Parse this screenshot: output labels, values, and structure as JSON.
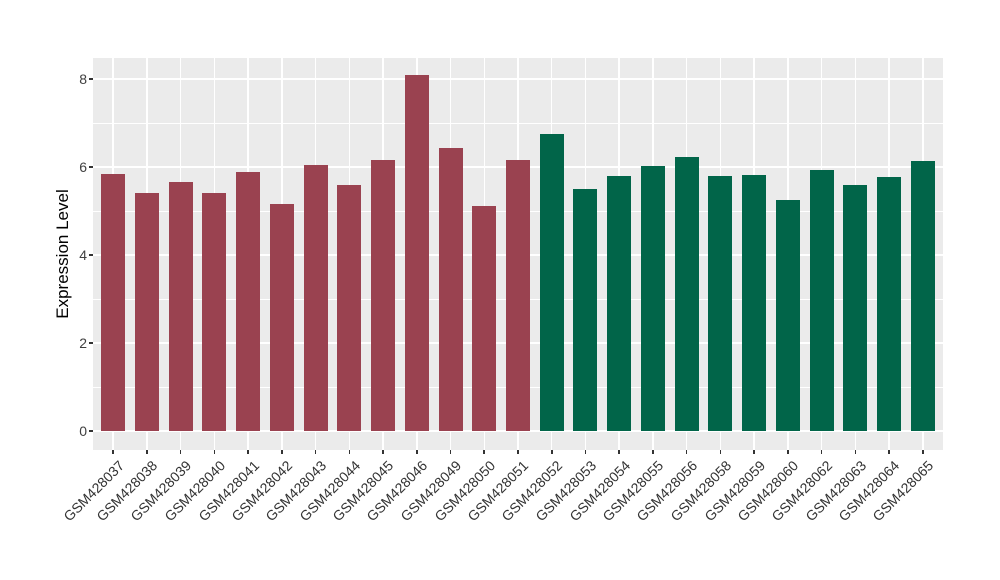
{
  "chart_data": {
    "type": "bar",
    "title": "",
    "xlabel": "",
    "ylabel": "Expression Level",
    "ylim": [
      0,
      8.5
    ],
    "yticks": [
      0,
      2,
      4,
      6,
      8
    ],
    "ytick_labels": [
      "0",
      "2",
      "4",
      "6",
      "8"
    ],
    "minor_gridlines": [
      1,
      3,
      5,
      7
    ],
    "grid": "on",
    "legend": "none",
    "panel_background": "#EBEBEB",
    "gridline_color": "#FFFFFF",
    "axis_text_color": "#404040",
    "tick_mark_color": "#333333",
    "categories": [
      "GSM428037",
      "GSM428038",
      "GSM428039",
      "GSM428040",
      "GSM428041",
      "GSM428042",
      "GSM428043",
      "GSM428044",
      "GSM428045",
      "GSM428046",
      "GSM428049",
      "GSM428050",
      "GSM428051",
      "GSM428052",
      "GSM428053",
      "GSM428054",
      "GSM428055",
      "GSM428056",
      "GSM428058",
      "GSM428059",
      "GSM428060",
      "GSM428062",
      "GSM428063",
      "GSM428064",
      "GSM428065"
    ],
    "values": [
      5.85,
      5.42,
      5.65,
      5.4,
      5.88,
      5.16,
      6.05,
      5.58,
      6.17,
      8.1,
      6.44,
      5.12,
      6.15,
      6.75,
      5.5,
      5.8,
      6.02,
      6.22,
      5.8,
      5.82,
      5.25,
      5.93,
      5.58,
      5.77,
      6.14
    ],
    "group": [
      1,
      1,
      1,
      1,
      1,
      1,
      1,
      1,
      1,
      1,
      1,
      1,
      1,
      2,
      2,
      2,
      2,
      2,
      2,
      2,
      2,
      2,
      2,
      2,
      2
    ],
    "group_colors": {
      "1": "#9A4250",
      "2": "#016549"
    }
  }
}
